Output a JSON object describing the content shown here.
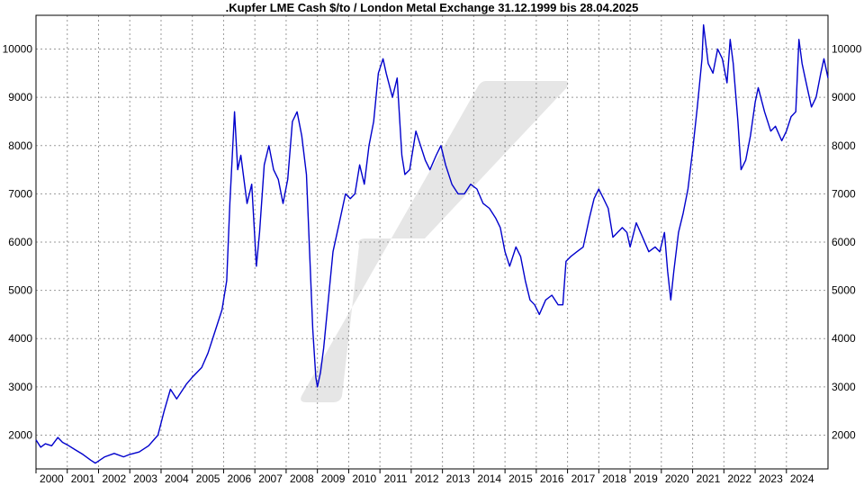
{
  "chart_data": {
    "type": "line",
    "title": ".Kupfer LME Cash $/to / London Metal Exchange 31.12.1999 bis 28.04.2025",
    "xlabel": "",
    "ylabel": "",
    "xlim": [
      2000.0,
      2025.33
    ],
    "ylim": [
      1300,
      10700
    ],
    "grid": true,
    "legend": "none",
    "line_color": "#0000cc",
    "y_ticks": [
      2000,
      3000,
      4000,
      5000,
      6000,
      7000,
      8000,
      9000,
      10000
    ],
    "y_tick_labels": [
      "2000",
      "3000",
      "4000",
      "5000",
      "6000",
      "7000",
      "8000",
      "9000",
      "10000"
    ],
    "x_ticks": [
      2000,
      2001,
      2002,
      2003,
      2004,
      2005,
      2006,
      2007,
      2008,
      2009,
      2010,
      2011,
      2012,
      2013,
      2014,
      2015,
      2016,
      2017,
      2018,
      2019,
      2020,
      2021,
      2022,
      2023,
      2024
    ],
    "x_tick_labels": [
      "2000",
      "2001",
      "2002",
      "2003",
      "2004",
      "2005",
      "2006",
      "2007",
      "2008",
      "2009",
      "2010",
      "2011",
      "2012",
      "2013",
      "2014",
      "2015",
      "2016",
      "2017",
      "2018",
      "2019",
      "2020",
      "2021",
      "2022",
      "2023",
      "2024"
    ],
    "series": [
      {
        "x": [
          2000.0,
          2000.15,
          2000.3,
          2000.5,
          2000.7,
          2000.85,
          2001.0,
          2001.25,
          2001.5,
          2001.75,
          2001.9,
          2002.2,
          2002.5,
          2002.8,
          2003.0,
          2003.3,
          2003.6,
          2003.9,
          2004.1,
          2004.3,
          2004.5,
          2004.8,
          2005.0,
          2005.3,
          2005.5,
          2005.75,
          2005.95,
          2006.1,
          2006.2,
          2006.35,
          2006.45,
          2006.55,
          2006.75,
          2006.9,
          2007.05,
          2007.15,
          2007.3,
          2007.45,
          2007.6,
          2007.75,
          2007.9,
          2008.05,
          2008.2,
          2008.35,
          2008.5,
          2008.65,
          2008.75,
          2008.85,
          2008.95,
          2009.0,
          2009.1,
          2009.2,
          2009.35,
          2009.5,
          2009.7,
          2009.9,
          2010.05,
          2010.2,
          2010.35,
          2010.5,
          2010.65,
          2010.8,
          2010.95,
          2011.1,
          2011.2,
          2011.4,
          2011.55,
          2011.7,
          2011.8,
          2011.95,
          2012.15,
          2012.3,
          2012.45,
          2012.6,
          2012.8,
          2012.95,
          2013.1,
          2013.3,
          2013.5,
          2013.7,
          2013.9,
          2014.1,
          2014.3,
          2014.5,
          2014.7,
          2014.85,
          2015.0,
          2015.15,
          2015.35,
          2015.5,
          2015.65,
          2015.8,
          2015.95,
          2016.1,
          2016.3,
          2016.5,
          2016.7,
          2016.85,
          2016.95,
          2017.1,
          2017.3,
          2017.5,
          2017.7,
          2017.85,
          2018.0,
          2018.15,
          2018.3,
          2018.45,
          2018.6,
          2018.75,
          2018.9,
          2019.0,
          2019.2,
          2019.4,
          2019.6,
          2019.8,
          2019.95,
          2020.1,
          2020.2,
          2020.3,
          2020.4,
          2020.55,
          2020.7,
          2020.85,
          2021.0,
          2021.15,
          2021.3,
          2021.35,
          2021.5,
          2021.65,
          2021.8,
          2021.95,
          2022.1,
          2022.2,
          2022.3,
          2022.45,
          2022.55,
          2022.7,
          2022.85,
          2023.0,
          2023.1,
          2023.3,
          2023.5,
          2023.65,
          2023.85,
          2024.0,
          2024.15,
          2024.3,
          2024.4,
          2024.5,
          2024.6,
          2024.7,
          2024.8,
          2024.95,
          2025.1,
          2025.2,
          2025.33
        ],
        "y": [
          1900,
          1750,
          1820,
          1780,
          1950,
          1850,
          1800,
          1700,
          1600,
          1480,
          1420,
          1550,
          1620,
          1550,
          1600,
          1650,
          1780,
          2000,
          2500,
          2950,
          2750,
          3050,
          3200,
          3400,
          3700,
          4200,
          4600,
          5200,
          6800,
          8700,
          7500,
          7800,
          6800,
          7200,
          5500,
          6200,
          7600,
          8000,
          7500,
          7300,
          6800,
          7300,
          8500,
          8700,
          8200,
          7400,
          5800,
          4200,
          3200,
          3000,
          3300,
          3800,
          4800,
          5800,
          6400,
          7000,
          6900,
          7000,
          7600,
          7200,
          8000,
          8500,
          9500,
          9800,
          9500,
          9000,
          9400,
          7800,
          7400,
          7500,
          8300,
          8000,
          7700,
          7500,
          7800,
          8000,
          7600,
          7200,
          7000,
          7000,
          7200,
          7100,
          6800,
          6700,
          6500,
          6300,
          5800,
          5500,
          5900,
          5700,
          5200,
          4800,
          4700,
          4500,
          4800,
          4900,
          4700,
          4700,
          5600,
          5700,
          5800,
          5900,
          6500,
          6900,
          7100,
          6900,
          6700,
          6100,
          6200,
          6300,
          6200,
          5900,
          6400,
          6100,
          5800,
          5900,
          5800,
          6200,
          5400,
          4800,
          5400,
          6200,
          6600,
          7100,
          7900,
          8800,
          9800,
          10500,
          9700,
          9500,
          10000,
          9800,
          9300,
          10200,
          9700,
          8500,
          7500,
          7700,
          8200,
          8900,
          9200,
          8700,
          8300,
          8400,
          8100,
          8300,
          8600,
          8700,
          10200,
          9700,
          9400,
          9100,
          8800,
          9000,
          9500,
          9800,
          9400
        ]
      }
    ]
  }
}
